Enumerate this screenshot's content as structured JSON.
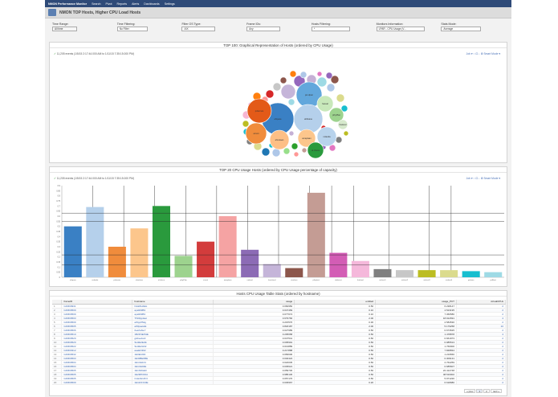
{
  "nav": {
    "brand": "NMON Performance Monitor",
    "items": [
      "Search",
      "Pivot",
      "Reports",
      "Alerts",
      "Dashboards",
      "Settings"
    ]
  },
  "app": {
    "title": "NMON TOP Hosts, Higher CPU Load Hosts"
  },
  "filters": [
    {
      "label": "Time Range:",
      "value": "All time"
    },
    {
      "label": "Time Filtering:",
      "value": "No Filter"
    },
    {
      "label": "Filter OS Type:",
      "value": "AIX"
    },
    {
      "label": "Frame IDs:",
      "value": "Any"
    },
    {
      "label": "Hosts Filtering:",
      "value": "*"
    },
    {
      "label": "Monitors Information:",
      "value": "LPAR - CPU Usage (V..."
    },
    {
      "label": "Stats Mode:",
      "value": "Average"
    }
  ],
  "bubble_panel": {
    "title": "TOP 100: Graphical Representation of Hosts (ordered by CPU Usage)",
    "events": "11,205 events (1/5/15 2:17:44.000 AM to 1/11/15 7:35:15.000 PM)",
    "tools": "Job ▾   ○   ⊡   ↓   ⚙ Smart Mode ▾",
    "bubbles": [
      {
        "label": "ahtpaxe",
        "color": "#3a80c4"
      },
      {
        "label": "jan.dpan",
        "color": "#62a7dc"
      },
      {
        "label": "ahtbaine",
        "color": "#b5d0eb"
      },
      {
        "label": "nolanda",
        "color": "#b8d3ec"
      },
      {
        "label": "pxlannos",
        "color": "#e35a18"
      },
      {
        "label": "eicunt",
        "color": "#f08c3c"
      },
      {
        "label": "ahnelaan",
        "color": "#fdbf85"
      },
      {
        "label": "amaplaan",
        "color": "#fcc68c"
      },
      {
        "label": "al.nheca",
        "color": "#2a9a3d"
      },
      {
        "label": "pthyPlan",
        "color": "#9dd38e"
      },
      {
        "label": "haceal",
        "color": "#c8e8ba"
      },
      {
        "label": "thelanol",
        "color": "#d6e9cc"
      }
    ]
  },
  "bar_panel": {
    "title": "TOP 20 CPU Usage Hosts (ordered by CPU Usage percentage of capacity)",
    "events": "11,205 events (1/5/15 2:17:44.000 AM to 1/11/15 7:35:15.000 PM)",
    "tools": "Job ▾   ○   ⊡   ↓   ⚙ Smart Mode ▾"
  },
  "chart_data": {
    "type": "bar",
    "title": "TOP 20 CPU Usage Hosts (ordered by CPU Usage percentage of capacity)",
    "categories": [
      "ahtpaxe",
      "nolanda",
      "pxlannos",
      "ahnelaan",
      "al.nheca",
      "pthyPlan",
      "eicunt",
      "amaplaan",
      "nolanal",
      "hacelanol",
      "nicalaan",
      "pthyhost",
      "ahdacert",
      "thelanol",
      "aixhost1",
      "aixhost2",
      "aixhost3",
      "aixhost4",
      "pxlaixm",
      "pxlHost"
    ],
    "values": [
      0.5,
      0.69,
      0.3,
      0.48,
      0.7,
      0.21,
      0.35,
      0.6,
      0.27,
      0.13,
      0.09,
      0.83,
      0.24,
      0.16,
      0.08,
      0.07,
      0.07,
      0.07,
      0.06,
      0.05
    ],
    "colors": [
      "#3a80c4",
      "#b5d0eb",
      "#f08c3c",
      "#fcc68c",
      "#2a9a3d",
      "#9dd38e",
      "#d33c3c",
      "#f5a3a3",
      "#8c6bb5",
      "#c5b5d9",
      "#8c564b",
      "#c49c94",
      "#d35db5",
      "#f5b8db",
      "#7f7f7f",
      "#c7c7c7",
      "#bcbd22",
      "#dbdb8d",
      "#17becf",
      "#9edae5"
    ],
    "ylim": [
      0,
      0.9
    ],
    "yticks": [
      "0.9",
      "0.85",
      "0.8",
      "0.75",
      "0.7",
      "0.65",
      "0.6",
      "0.55",
      "0.5",
      "0.45",
      "0.4",
      "0.35",
      "0.3",
      "0.25",
      "0.2",
      "0.15",
      "0.1",
      "0.05",
      "0"
    ]
  },
  "table_panel": {
    "title": "Hosts CPU Usage Table Stats (ordered by hostname)",
    "columns": [
      "",
      "frameID",
      "hostname",
      "usage",
      "entitled",
      "usage_PCT",
      "virtualCPUs"
    ],
    "rows": [
      [
        "1",
        "GFM00931",
        "NH2ZH2EH",
        "0.060950",
        "0.50",
        "6.238147",
        "2"
      ],
      [
        "2",
        "GFM00509",
        "apa993B3",
        "0.047469",
        "0.10",
        "4.523195",
        "2"
      ],
      [
        "3",
        "GFM00509",
        "apa993B3",
        "0.077674",
        "0.10",
        "7.366580",
        "2"
      ],
      [
        "4",
        "GFM00503",
        "TISI0pplaat",
        "0.679766",
        "2.00",
        "18.912691",
        "4"
      ],
      [
        "5",
        "GFM00509",
        "aWpplfSkg",
        "0.215576",
        "0.30",
        "2.584530",
        "2"
      ],
      [
        "6",
        "GFM00505",
        "aWlpaelwE",
        "0.818187",
        "2.00",
        "5.179258",
        "10"
      ],
      [
        "7",
        "GFM00506",
        "ifearfaNeY",
        "0.027989",
        "0.50",
        "0.673525",
        "2"
      ],
      [
        "8",
        "GFM00510",
        "1B2FNEPHE",
        "0.205658",
        "0.50",
        "1.478878",
        "4"
      ],
      [
        "9",
        "GFM00520",
        "gHbeefar2",
        "0.047541",
        "0.50",
        "0.661973",
        "2"
      ],
      [
        "10",
        "GFM00520",
        "SH2E2E2E",
        "0.005991",
        "0.50",
        "0.985513",
        "2"
      ],
      [
        "11",
        "GFM00522",
        "SH2E2H02",
        "0.013889",
        "0.50",
        "1.760000",
        "2"
      ],
      [
        "12",
        "GFM00312",
        "aaeEN302",
        "0.217888",
        "0.50",
        "7.848834",
        "2"
      ],
      [
        "13",
        "GFM00532",
        "1E0E0J00",
        "0.083606",
        "0.50",
        "1.219566",
        "2"
      ],
      [
        "14",
        "GFM00503",
        "1E30BE6BE",
        "0.040424",
        "0.50",
        "0.309131",
        "2"
      ],
      [
        "15",
        "GFM00504",
        "1E1CE101",
        "0.022045",
        "0.50",
        "2.762259",
        "2"
      ],
      [
        "16",
        "GFM00504",
        "1E1CE02E",
        "0.045621",
        "0.50",
        "0.685607",
        "2"
      ],
      [
        "17",
        "GFM00505",
        "1E1N0GE0",
        "0.059730",
        "0.50",
        "22.412748",
        "2"
      ],
      [
        "18",
        "GFM00505",
        "1E29PDF0A",
        "0.985136",
        "0.50",
        "48.516002",
        "2"
      ],
      [
        "19",
        "GFM00505",
        "CLE4GUIF3",
        "0.057176",
        "0.50",
        "5.971220",
        "2"
      ],
      [
        "20",
        "GFM00509",
        "1E11FFIC0E",
        "0.045967",
        "0.20",
        "6.618980",
        "2"
      ]
    ],
    "pager": [
      "« prev",
      "1",
      "2",
      "next »"
    ]
  }
}
